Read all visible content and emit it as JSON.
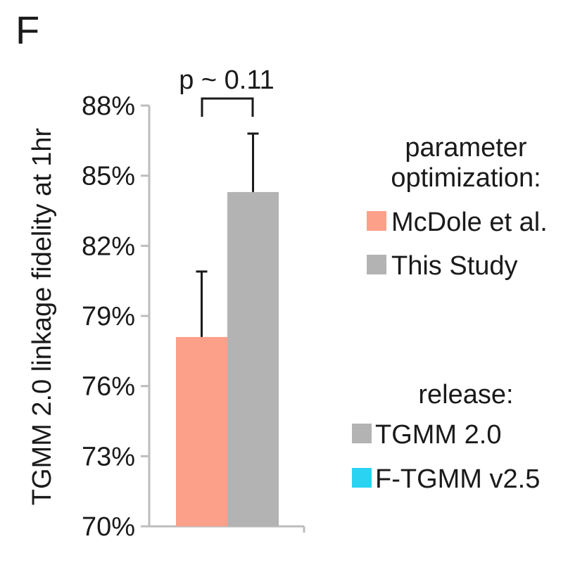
{
  "panel_label": "F",
  "chart_data": {
    "type": "bar",
    "ylabel": "TGMM 2.0 linkage fidelity at 1hr",
    "ylim": [
      70,
      88
    ],
    "yticks": [
      70,
      73,
      76,
      79,
      82,
      85,
      88
    ],
    "ytick_labels": [
      "70%",
      "73%",
      "76%",
      "79%",
      "82%",
      "85%",
      "88%"
    ],
    "categories": [
      ""
    ],
    "series": [
      {
        "name": "McDole et al.",
        "values": [
          78.1
        ],
        "error": [
          2.8
        ],
        "color": "#fca08a"
      },
      {
        "name": "This Study",
        "values": [
          84.3
        ],
        "error": [
          2.5
        ],
        "color": "#b3b3b3"
      }
    ],
    "annotation": "p ~ 0.11",
    "grid": false,
    "legend_position": "right",
    "legend_groups": [
      {
        "title": [
          "parameter",
          "optimization:"
        ],
        "items": [
          {
            "label": "McDole et al.",
            "color": "#fca08a"
          },
          {
            "label": "This Study",
            "color": "#b3b3b3"
          }
        ]
      },
      {
        "title": [
          "release:"
        ],
        "items": [
          {
            "label": "TGMM 2.0",
            "color": "#b3b3b3"
          },
          {
            "label": "F-TGMM v2.5",
            "color": "#2bd3f2"
          }
        ]
      }
    ]
  }
}
